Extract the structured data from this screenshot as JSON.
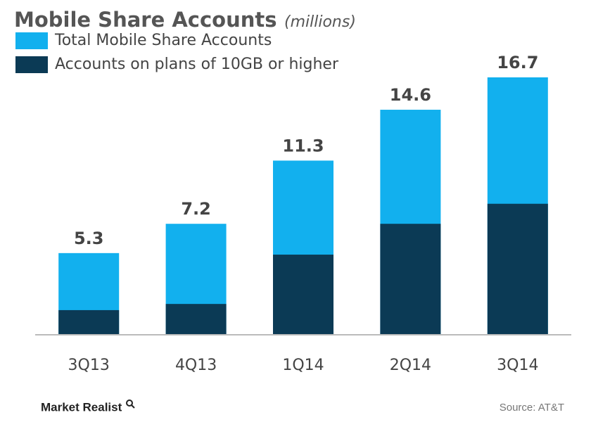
{
  "chart_data": {
    "type": "bar",
    "bar_mode": "overlay",
    "title": "Mobile Share Accounts",
    "subtitle": "(millions)",
    "categories": [
      "3Q13",
      "4Q13",
      "1Q14",
      "2Q14",
      "3Q14"
    ],
    "series": [
      {
        "name": "Total Mobile Share Accounts",
        "color": "#12b0ee",
        "values": [
          5.3,
          7.2,
          11.3,
          14.6,
          16.7
        ],
        "show_labels": true
      },
      {
        "name": "Accounts on plans of 10GB or higher",
        "color": "#0b3a55",
        "values": [
          1.6,
          2.0,
          5.2,
          7.2,
          8.5
        ],
        "show_labels": false
      }
    ],
    "logo": "Market Realist",
    "source": "Source: AT&T"
  }
}
